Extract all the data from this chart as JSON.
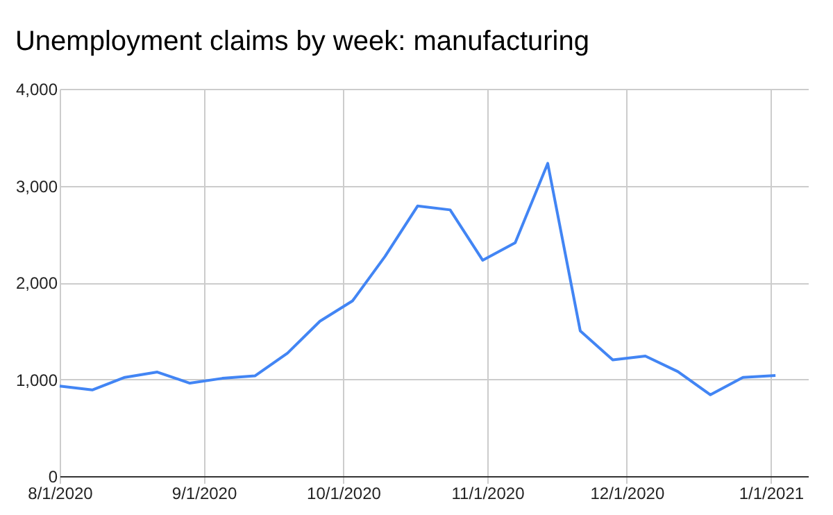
{
  "chart_data": {
    "type": "line",
    "title": "Unemployment claims by week: manufacturing",
    "x": [
      "2020-08-01",
      "2020-08-08",
      "2020-08-15",
      "2020-08-22",
      "2020-08-29",
      "2020-09-05",
      "2020-09-12",
      "2020-09-19",
      "2020-09-26",
      "2020-10-03",
      "2020-10-10",
      "2020-10-17",
      "2020-10-24",
      "2020-10-31",
      "2020-11-07",
      "2020-11-14",
      "2020-11-21",
      "2020-11-28",
      "2020-12-05",
      "2020-12-12",
      "2020-12-19",
      "2020-12-26",
      "2021-01-02"
    ],
    "series": [
      {
        "color": "#4285f4",
        "values": [
          930,
          890,
          1020,
          1075,
          960,
          1010,
          1035,
          1270,
          1600,
          1810,
          2270,
          2790,
          2750,
          2230,
          2410,
          3230,
          1500,
          1200,
          1240,
          1080,
          840,
          1020,
          1040
        ]
      }
    ],
    "xlim": [
      "2020-08-01",
      "2021-01-09"
    ],
    "xticks": [
      {
        "value": "2020-08-01",
        "label": "8/1/2020"
      },
      {
        "value": "2020-09-01",
        "label": "9/1/2020"
      },
      {
        "value": "2020-10-01",
        "label": "10/1/2020"
      },
      {
        "value": "2020-11-01",
        "label": "11/1/2020"
      },
      {
        "value": "2020-12-01",
        "label": "12/1/2020"
      },
      {
        "value": "2021-01-01",
        "label": "1/1/2021"
      }
    ],
    "ylim": [
      0,
      4000
    ],
    "yticks": [
      {
        "value": 0,
        "label": "0"
      },
      {
        "value": 1000,
        "label": "1,000"
      },
      {
        "value": 2000,
        "label": "2,000"
      },
      {
        "value": 3000,
        "label": "3,000"
      },
      {
        "value": 4000,
        "label": "4,000"
      }
    ],
    "grid": true,
    "marker": "none",
    "line_style": "solid"
  }
}
